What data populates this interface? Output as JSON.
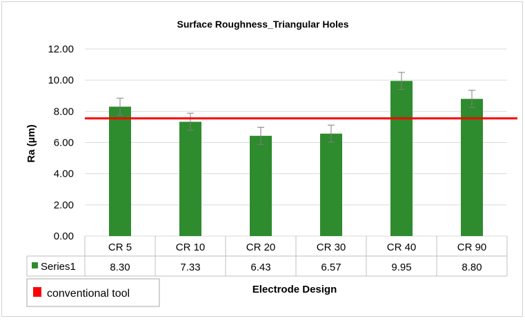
{
  "chart_data": {
    "type": "bar",
    "title": "Surface Roughness_Triangular Holes",
    "xlabel": "Electrode Design",
    "ylabel": "Ra (µm)",
    "ylim": [
      0,
      12
    ],
    "y_ticks": [
      "0.00",
      "2.00",
      "4.00",
      "6.00",
      "8.00",
      "10.00",
      "12.00"
    ],
    "categories": [
      "CR 5",
      "CR 10",
      "CR 20",
      "CR 30",
      "CR 40",
      "CR 90"
    ],
    "series": [
      {
        "name": "Series1",
        "color": "#2e8b2e",
        "values": [
          8.3,
          7.33,
          6.43,
          6.57,
          9.95,
          8.8
        ],
        "value_labels": [
          "8.30",
          "7.33",
          "6.43",
          "6.57",
          "9.95",
          "8.80"
        ],
        "error": [
          0.55,
          0.55,
          0.55,
          0.55,
          0.55,
          0.55
        ]
      }
    ],
    "reference_line": {
      "name": "conventional tool",
      "value": 7.55,
      "color": "#ff0000"
    },
    "grid": true,
    "data_table": true,
    "legend_position": "bottom-left"
  }
}
